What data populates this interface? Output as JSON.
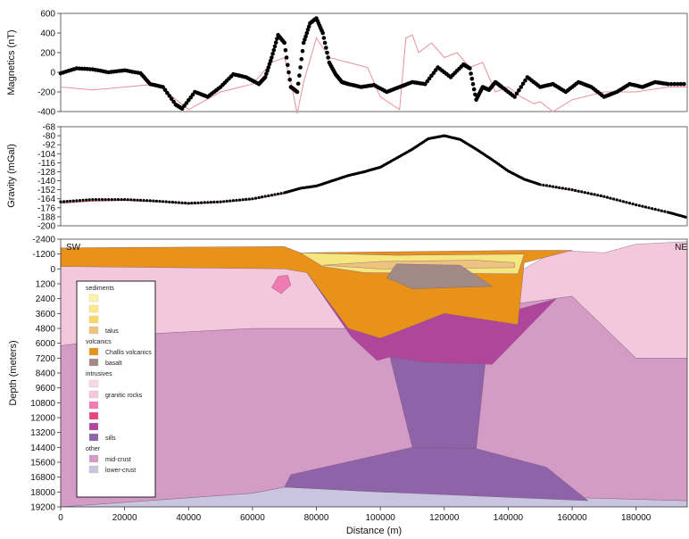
{
  "chart_data": [
    {
      "type": "scatter",
      "ylabel": "Magnetics (nT)",
      "ylim": [
        -400,
        600
      ],
      "yticks": [
        600,
        400,
        200,
        0,
        -200,
        -400
      ],
      "series": [
        {
          "role": "observed",
          "style": "points",
          "color": "#000000",
          "x": [
            0,
            5000,
            10000,
            15000,
            20000,
            25000,
            28000,
            32000,
            36000,
            38000,
            42000,
            46000,
            50000,
            54000,
            58000,
            62000,
            64000,
            66000,
            68000,
            70000,
            72000,
            74000,
            76000,
            78000,
            80000,
            82000,
            84000,
            86000,
            88000,
            90000,
            94000,
            98000,
            102000,
            106000,
            110000,
            114000,
            118000,
            122000,
            126000,
            128000,
            130000,
            132000,
            134000,
            136000,
            138000,
            142000,
            146000,
            150000,
            154000,
            158000,
            162000,
            166000,
            170000,
            174000,
            178000,
            182000,
            186000,
            190000,
            196000
          ],
          "y": [
            -10,
            40,
            30,
            0,
            20,
            -10,
            -120,
            -150,
            -330,
            -370,
            -200,
            -250,
            -150,
            -20,
            -50,
            -120,
            -50,
            150,
            380,
            300,
            -150,
            -200,
            300,
            500,
            550,
            400,
            100,
            -20,
            -100,
            -120,
            -150,
            -130,
            -200,
            -150,
            -100,
            -120,
            50,
            -50,
            80,
            40,
            -280,
            -150,
            -180,
            -100,
            -150,
            -250,
            -50,
            -150,
            -120,
            -200,
            -100,
            -150,
            -250,
            -200,
            -120,
            -150,
            -100,
            -120,
            -120
          ]
        },
        {
          "role": "calculated",
          "style": "line",
          "color": "#e8909a",
          "x": [
            0,
            10000,
            20000,
            30000,
            40000,
            50000,
            60000,
            66000,
            70000,
            72000,
            74000,
            76000,
            80000,
            84000,
            90000,
            96000,
            100000,
            106000,
            108000,
            110000,
            112000,
            116000,
            120000,
            124000,
            128000,
            132000,
            136000,
            140000,
            144000,
            148000,
            150000,
            154000,
            160000,
            170000,
            180000,
            190000,
            196000
          ],
          "y": [
            -150,
            -180,
            -150,
            -120,
            -380,
            -200,
            -120,
            100,
            150,
            -100,
            -420,
            -100,
            350,
            150,
            100,
            50,
            -250,
            -380,
            350,
            380,
            200,
            300,
            150,
            200,
            50,
            100,
            -200,
            -150,
            -250,
            -320,
            -300,
            -400,
            -280,
            -200,
            -200,
            -150,
            -150
          ]
        }
      ]
    },
    {
      "type": "scatter",
      "ylabel": "Gravity (mGal)",
      "ylim": [
        -200,
        -68
      ],
      "yticks": [
        -68,
        -80,
        -92,
        -104,
        -116,
        -128,
        -140,
        -152,
        -164,
        -176,
        -188,
        -200
      ],
      "yticks_extra": [
        -200
      ],
      "series": [
        {
          "role": "observed",
          "style": "points",
          "color": "#000000",
          "x": [
            0,
            10000,
            20000,
            30000,
            40000,
            50000,
            60000,
            70000,
            75000,
            80000,
            85000,
            90000,
            95000,
            100000,
            105000,
            110000,
            115000,
            120000,
            125000,
            130000,
            135000,
            140000,
            145000,
            150000,
            160000,
            170000,
            180000,
            190000,
            196000
          ],
          "y": [
            -168,
            -165,
            -165,
            -167,
            -170,
            -168,
            -164,
            -156,
            -150,
            -147,
            -140,
            -133,
            -128,
            -122,
            -110,
            -98,
            -84,
            -80,
            -85,
            -98,
            -112,
            -127,
            -138,
            -145,
            -152,
            -161,
            -172,
            -182,
            -189
          ]
        },
        {
          "role": "calculated",
          "style": "line",
          "color": "#c05060",
          "x": [
            0,
            10000,
            20000,
            30000,
            40000,
            50000,
            60000,
            70000,
            75000,
            80000,
            85000,
            90000,
            95000,
            100000,
            105000,
            110000,
            115000,
            120000,
            125000,
            130000,
            135000,
            140000,
            145000,
            150000,
            160000,
            170000,
            180000,
            190000,
            196000
          ],
          "y": [
            -170,
            -167,
            -166,
            -168,
            -171,
            -169,
            -165,
            -157,
            -151,
            -148,
            -141,
            -134,
            -129,
            -123,
            -111,
            -99,
            -85,
            -81,
            -86,
            -99,
            -113,
            -128,
            -139,
            -146,
            -153,
            -162,
            -173,
            -183,
            -190
          ]
        }
      ]
    },
    {
      "type": "area",
      "xlabel": "Distance (m)",
      "ylabel": "Depth (meters)",
      "xlim": [
        0,
        196000
      ],
      "ylim": [
        -2400,
        19200
      ],
      "xticks": [
        0,
        20000,
        40000,
        60000,
        80000,
        100000,
        120000,
        140000,
        160000,
        180000
      ],
      "yticks": [
        -2400,
        -1200,
        0,
        1200,
        2400,
        3600,
        4800,
        6000,
        7200,
        8400,
        9600,
        10800,
        12000,
        13200,
        14400,
        15600,
        16800,
        18000,
        19200
      ],
      "annotations": {
        "left": "SW",
        "right": "NE"
      },
      "bodies": [
        {
          "name": "lower-crust",
          "color": "#c9c5e0",
          "pts": [
            [
              0,
              19200
            ],
            [
              60000,
              18100
            ],
            [
              70000,
              17600
            ],
            [
              100000,
              18000
            ],
            [
              196000,
              18700
            ],
            [
              196000,
              19200
            ]
          ]
        },
        {
          "name": "mid-crust",
          "color": "#d49bc6",
          "pts": [
            [
              0,
              6200
            ],
            [
              30000,
              5200
            ],
            [
              60000,
              4800
            ],
            [
              90000,
              4800
            ],
            [
              120000,
              3600
            ],
            [
              160000,
              2200
            ],
            [
              180000,
              7200
            ],
            [
              196000,
              7200
            ],
            [
              196000,
              18700
            ],
            [
              100000,
              18000
            ],
            [
              70000,
              17600
            ],
            [
              60000,
              18100
            ],
            [
              0,
              19200
            ]
          ]
        },
        {
          "name": "granitic-upper",
          "color": "#f4c8dc",
          "pts": [
            [
              0,
              -600
            ],
            [
              70000,
              -700
            ],
            [
              75000,
              0
            ],
            [
              145000,
              0
            ],
            [
              155000,
              -1500
            ],
            [
              170000,
              -1300
            ],
            [
              180000,
              -2000
            ],
            [
              196000,
              -2200
            ],
            [
              196000,
              7200
            ],
            [
              180000,
              7200
            ],
            [
              160000,
              2200
            ],
            [
              120000,
              3600
            ],
            [
              90000,
              4800
            ],
            [
              60000,
              4800
            ],
            [
              30000,
              5200
            ],
            [
              0,
              6200
            ]
          ]
        },
        {
          "name": "sill-lower",
          "color": "#8e63a8",
          "pts": [
            [
              72000,
              16600
            ],
            [
              110000,
              14400
            ],
            [
              130000,
              14500
            ],
            [
              152000,
              16000
            ],
            [
              165000,
              18700
            ],
            [
              100000,
              18000
            ],
            [
              70000,
              17600
            ]
          ]
        },
        {
          "name": "sill-column",
          "color": "#8e63a8",
          "pts": [
            [
              103000,
              7100
            ],
            [
              133000,
              7100
            ],
            [
              130000,
              14500
            ],
            [
              110000,
              14400
            ]
          ]
        },
        {
          "name": "sill-upper",
          "color": "#b0459c",
          "pts": [
            [
              77000,
              300
            ],
            [
              90000,
              4800
            ],
            [
              100000,
              5600
            ],
            [
              120000,
              3600
            ],
            [
              140000,
              3500
            ],
            [
              155000,
              2400
            ],
            [
              135000,
              7700
            ],
            [
              113000,
              7500
            ],
            [
              103000,
              7100
            ],
            [
              99000,
              7400
            ],
            [
              91000,
              5500
            ]
          ]
        },
        {
          "name": "challis-volcanics",
          "color": "#e8921a",
          "pts": [
            [
              0,
              -1700
            ],
            [
              70000,
              -1800
            ],
            [
              75000,
              -1300
            ],
            [
              145000,
              -1500
            ],
            [
              160000,
              -1500
            ],
            [
              145000,
              -500
            ],
            [
              143000,
              4500
            ],
            [
              120000,
              3600
            ],
            [
              100000,
              5600
            ],
            [
              90000,
              4800
            ],
            [
              77000,
              300
            ],
            [
              70000,
              0
            ],
            [
              0,
              -200
            ]
          ]
        },
        {
          "name": "sediments",
          "color": "#f5e680",
          "pts": [
            [
              75000,
              -1300
            ],
            [
              105000,
              -1100
            ],
            [
              145000,
              -1200
            ],
            [
              143000,
              400
            ],
            [
              95000,
              300
            ],
            [
              82000,
              -200
            ]
          ]
        },
        {
          "name": "talus",
          "color": "#efc27e",
          "pts": [
            [
              82000,
              -300
            ],
            [
              100000,
              -600
            ],
            [
              130000,
              -700
            ],
            [
              142000,
              -500
            ],
            [
              142000,
              -100
            ],
            [
              100000,
              0
            ]
          ]
        },
        {
          "name": "basalt",
          "color": "#a18a86",
          "pts": [
            [
              105000,
              -400
            ],
            [
              125000,
              -300
            ],
            [
              135000,
              1400
            ],
            [
              110000,
              1600
            ],
            [
              102000,
              700
            ]
          ]
        },
        {
          "name": "granitic-small",
          "color": "#f07ab2",
          "pts": [
            [
              68000,
              600
            ],
            [
              71000,
              500
            ],
            [
              72000,
              1300
            ],
            [
              69000,
              2000
            ],
            [
              66000,
              1500
            ]
          ]
        }
      ],
      "legend": {
        "placement": "left",
        "groups": [
          {
            "title": "sediments",
            "items": [
              {
                "label": "",
                "color": "#fff3a8"
              },
              {
                "label": "",
                "color": "#fbe98a"
              },
              {
                "label": "",
                "color": "#f7d965"
              },
              {
                "label": "talus",
                "color": "#efc27e"
              }
            ]
          },
          {
            "title": "volcanics",
            "items": [
              {
                "label": "Challis volcanics",
                "color": "#e8921a"
              },
              {
                "label": "basalt",
                "color": "#a18a86"
              }
            ]
          },
          {
            "title": "intrusives",
            "items": [
              {
                "label": "",
                "color": "#f8d7e3"
              },
              {
                "label": "granitic rocks",
                "color": "#f4c8dc"
              },
              {
                "label": "",
                "color": "#f07ab2"
              },
              {
                "label": "",
                "color": "#e8457a"
              },
              {
                "label": "",
                "color": "#b0459c"
              },
              {
                "label": "sills",
                "color": "#8e63a8"
              }
            ]
          },
          {
            "title": "other",
            "items": [
              {
                "label": "mid-crust",
                "color": "#d49bc6"
              },
              {
                "label": "lower-crust",
                "color": "#c9c5e0"
              }
            ]
          }
        ]
      }
    }
  ]
}
